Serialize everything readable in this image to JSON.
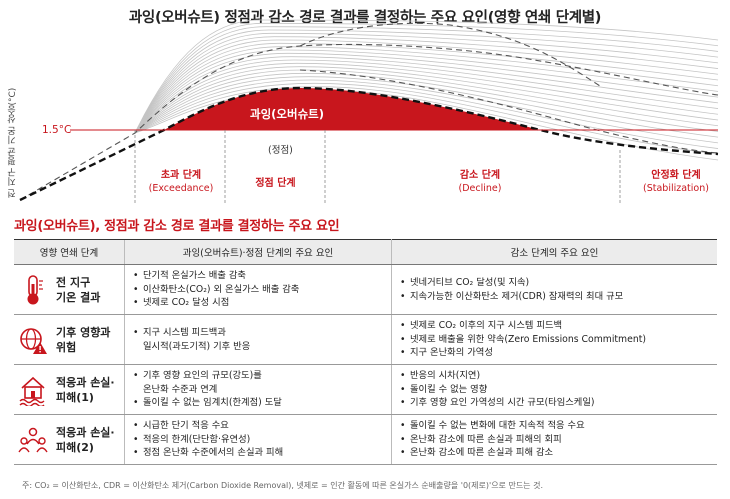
{
  "title": "과잉(오버슈트) 정점과 감소 경로 결과를 결정하는 주요 요인(영향 연쇄 단계별)",
  "chart": {
    "ylabel": "전 지구 평균 기온 상승(°C)",
    "threshold_label": "1.5°C",
    "overshoot_label": "과잉(오버슈트)",
    "peak_label": "(정점)",
    "phases": [
      {
        "kr": "초과 단계",
        "en": "(Exceedance)"
      },
      {
        "kr": "정점 단계",
        "en": ""
      },
      {
        "kr": "감소 단계",
        "en": "(Decline)"
      },
      {
        "kr": "안정화 단계",
        "en": "(Stabilization)"
      }
    ],
    "colors": {
      "accent": "#c8161d",
      "grey": "#bdbdbd",
      "dark": "#111111"
    }
  },
  "subtitle": "과잉(오버슈트), 정점과 감소 경로 결과를 결정하는 주요 요인",
  "table": {
    "headers": [
      "영향 연쇄 단계",
      "과잉(오버슈트)·정점 단계의 주요 요인",
      "감소 단계의 주요 요인"
    ],
    "rows": [
      {
        "icon": "thermometer-icon",
        "label": "전 지구\n기온 결과",
        "col2": [
          "단기적 온실가스 배출 감축",
          "이산화탄소(CO₂) 외 온실가스 배출 감축",
          "넷제로 CO₂ 달성 시점"
        ],
        "col3": [
          "넷네거티브 CO₂ 달성(및 지속)",
          "지속가능한 이산화탄소 제거(CDR) 잠재력의 최대 규모"
        ]
      },
      {
        "icon": "globe-warning-icon",
        "label": "기후 영향과\n위험",
        "col2": [
          "지구 시스템 피드백과\n일시적(과도기적) 기후 반응"
        ],
        "col3": [
          "넷제로 CO₂ 이후의 지구 시스템 피드백",
          "넷제로 배출을 위한 약속(Zero Emissions Commitment)",
          "지구 온난화의 가역성"
        ]
      },
      {
        "icon": "flooded-house-icon",
        "label": "적응과 손실·\n피해(1)",
        "col2": [
          "기후 영향 요인의 규모(강도)를\n온난화 수준과 연계",
          "돌이킬 수 없는 임계치(한계점) 도달"
        ],
        "col3": [
          "반응의 시차(지연)",
          "돌이킬 수 없는 영향",
          "기후 영향 요인 가역성의 시간 규모(타임스케일)"
        ]
      },
      {
        "icon": "people-network-icon",
        "label": "적응과 손실·\n피해(2)",
        "col2": [
          "시급한 단기 적응 수요",
          "적응의 한계(단단함·유연성)",
          "정점 온난화 수준에서의 손실과 피해"
        ],
        "col3": [
          "돌이킬 수 없는 변화에 대한 지속적 적응 수요",
          "온난화 감소에 따른 손실과 피해의 회피",
          "온난화 감소에 따른 손실과 피해 감소"
        ]
      }
    ]
  },
  "footnote": "주: CO₂ = 이산화탄소, CDR = 이산화탄소 제거(Carbon Dioxide Removal), 넷제로 = 인간 활동에 따른 온실가스 순배출량을 '0(제로)'으로 만드는 것."
}
